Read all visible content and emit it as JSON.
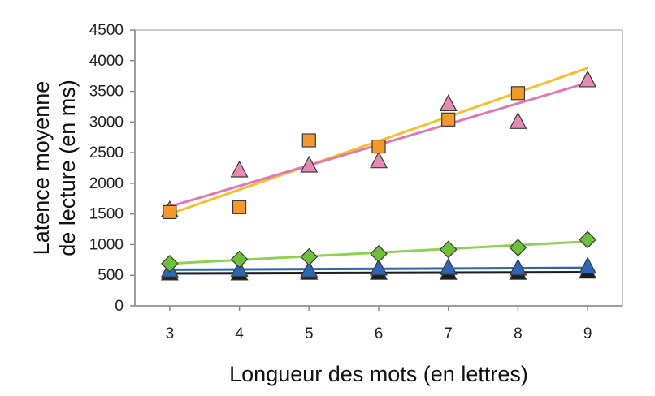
{
  "chart_data": {
    "type": "scatter",
    "title": "",
    "xlabel": "Longueur des mots (en lettres)",
    "ylabel_lines": [
      "Latence moyenne",
      "de lecture (en ms)"
    ],
    "x": [
      3,
      4,
      5,
      6,
      7,
      8,
      9
    ],
    "xlim": [
      2.5,
      9.5
    ],
    "ylim": [
      0,
      4500
    ],
    "yticks": [
      0,
      500,
      1000,
      1500,
      2000,
      2500,
      3000,
      3500,
      4000,
      4500
    ],
    "grid": false,
    "legend": "none",
    "series": [
      {
        "marker": "square",
        "color": "#f39a2d",
        "trend_color": "#f6c02c",
        "values": [
          1530,
          1610,
          2700,
          2600,
          3040,
          3470,
          null
        ],
        "trend": [
          1500,
          3880
        ]
      },
      {
        "marker": "triangle",
        "color": "#e888b4",
        "trend_color": "#e277b5",
        "values": [
          1560,
          2210,
          2290,
          2360,
          3290,
          3000,
          3680
        ],
        "trend": [
          1620,
          3640
        ]
      },
      {
        "marker": "diamond",
        "color": "#6fbe3c",
        "trend_color": "#8fd24f",
        "values": [
          690,
          760,
          800,
          850,
          920,
          950,
          1080
        ],
        "trend": [
          690,
          1050
        ]
      },
      {
        "marker": "triangle",
        "color": "#2e66b5",
        "trend_color": "#2e66b5",
        "values": [
          580,
          590,
          580,
          610,
          620,
          610,
          640
        ],
        "trend": [
          590,
          620
        ]
      },
      {
        "marker": "triangle",
        "color": "#1c1c1c",
        "trend_color": "#1c1c1c",
        "values": [
          530,
          530,
          540,
          540,
          540,
          540,
          560
        ],
        "trend": [
          530,
          550
        ]
      }
    ]
  }
}
